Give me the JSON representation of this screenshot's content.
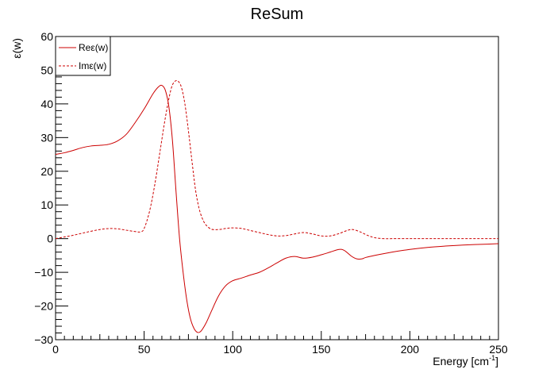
{
  "chart_data": {
    "type": "line",
    "title": "ReSum",
    "xlabel": "Energy [cm",
    "xlabel_sup": "-1",
    "xlabel_close": "]",
    "ylabel": "ε(w)",
    "xlim": [
      0,
      250
    ],
    "ylim": [
      -30,
      60
    ],
    "x_ticks": [
      0,
      50,
      100,
      150,
      200,
      250
    ],
    "y_ticks": [
      -30,
      -20,
      -10,
      0,
      10,
      20,
      30,
      40,
      50,
      60
    ],
    "grid": false,
    "legend_position": "top-left",
    "series": [
      {
        "name": "Reε(w)",
        "color": "#cc0000",
        "style": "solid",
        "x": [
          0,
          5,
          10,
          15,
          20,
          25,
          30,
          35,
          40,
          45,
          50,
          55,
          58,
          60,
          62,
          64,
          66,
          68,
          70,
          72,
          74,
          76,
          78,
          80,
          82,
          85,
          88,
          92,
          96,
          100,
          105,
          110,
          115,
          120,
          125,
          130,
          135,
          140,
          145,
          150,
          155,
          160,
          163,
          167,
          170,
          173,
          175,
          180,
          190,
          200,
          210,
          220,
          230,
          240,
          250
        ],
        "y": [
          25.0,
          25.5,
          26.2,
          27.0,
          27.5,
          27.7,
          28.0,
          29.0,
          31.0,
          34.5,
          38.5,
          43.0,
          45.0,
          45.5,
          44.0,
          39.0,
          29.0,
          14.0,
          0.0,
          -10.0,
          -18.0,
          -23.5,
          -26.5,
          -27.8,
          -27.5,
          -25.0,
          -21.5,
          -17.0,
          -14.0,
          -12.5,
          -11.7,
          -10.8,
          -10.0,
          -8.7,
          -7.2,
          -5.8,
          -5.3,
          -5.8,
          -5.5,
          -4.8,
          -4.0,
          -3.2,
          -3.5,
          -5.2,
          -6.0,
          -6.0,
          -5.6,
          -5.0,
          -4.0,
          -3.2,
          -2.6,
          -2.2,
          -1.9,
          -1.7,
          -1.5
        ]
      },
      {
        "name": "Imε(w)",
        "color": "#cc0000",
        "style": "dashed",
        "x": [
          0,
          5,
          10,
          15,
          20,
          25,
          30,
          35,
          40,
          45,
          48,
          50,
          53,
          56,
          59,
          62,
          65,
          67,
          69,
          71,
          73,
          75,
          77,
          79,
          81,
          83,
          85,
          88,
          92,
          96,
          100,
          105,
          110,
          115,
          120,
          125,
          130,
          135,
          140,
          145,
          150,
          155,
          160,
          165,
          168,
          172,
          176,
          180,
          185,
          190,
          200,
          210,
          220,
          230,
          240,
          250
        ],
        "y": [
          0.0,
          0.5,
          1.0,
          1.6,
          2.2,
          2.7,
          3.0,
          2.9,
          2.5,
          2.1,
          2.0,
          3.0,
          8.0,
          16.0,
          26.0,
          36.0,
          44.0,
          46.5,
          46.8,
          45.0,
          40.0,
          32.0,
          23.0,
          14.5,
          9.0,
          5.8,
          4.0,
          2.8,
          2.7,
          3.0,
          3.2,
          3.0,
          2.4,
          1.8,
          1.2,
          0.8,
          0.9,
          1.4,
          1.8,
          1.4,
          0.8,
          0.8,
          1.5,
          2.5,
          2.7,
          2.0,
          1.0,
          0.3,
          0.0,
          0.0,
          0.0,
          0.0,
          0.0,
          0.0,
          0.0,
          0.0
        ]
      }
    ]
  }
}
